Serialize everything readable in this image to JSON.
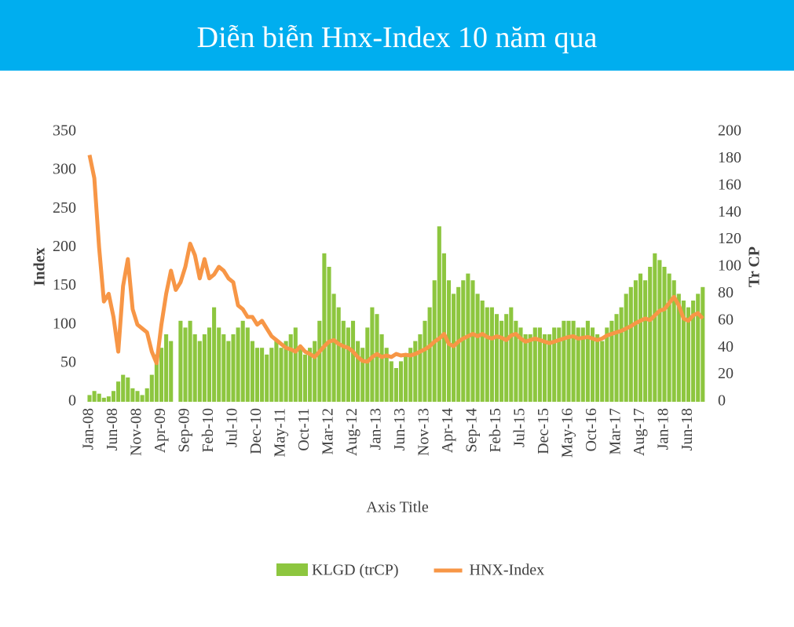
{
  "chart_data": {
    "type": "bar-line",
    "title": "Diễn biễn Hnx-Index 10 năm qua",
    "x_label": "Axis Title",
    "y_label": "Index",
    "y2_label": "Tr CP",
    "categories": [
      "Jan-08",
      null,
      null,
      null,
      null,
      "Jun-08",
      null,
      null,
      null,
      null,
      "Nov-08",
      null,
      null,
      null,
      null,
      "Apr-09",
      null,
      null,
      null,
      null,
      "Sep-09",
      null,
      null,
      null,
      null,
      "Feb-10",
      null,
      null,
      null,
      null,
      "Jul-10",
      null,
      null,
      null,
      null,
      "Dec-10",
      null,
      null,
      null,
      null,
      "May-11",
      null,
      null,
      null,
      null,
      "Oct-11",
      null,
      null,
      null,
      null,
      "Mar-12",
      null,
      null,
      null,
      null,
      "Aug-12",
      null,
      null,
      null,
      null,
      "Jan-13",
      null,
      null,
      null,
      null,
      "Jun-13",
      null,
      null,
      null,
      null,
      "Nov-13",
      null,
      null,
      null,
      null,
      "Apr-14",
      null,
      null,
      null,
      null,
      "Sep-14",
      null,
      null,
      null,
      null,
      "Feb-15",
      null,
      null,
      null,
      null,
      "Jul-15",
      null,
      null,
      null,
      null,
      "Dec-15",
      null,
      null,
      null,
      null,
      "May-16",
      null,
      null,
      null,
      null,
      "Oct-16",
      null,
      null,
      null,
      null,
      "Mar-17",
      null,
      null,
      null,
      null,
      "Aug-17",
      null,
      null,
      null,
      null,
      "Jan-18",
      null,
      null,
      null,
      null,
      "Jun-18",
      null,
      null,
      null
    ],
    "series": [
      {
        "name": "KLGD (trCP)",
        "type": "bar",
        "axis": "y2",
        "color": "#8dc63f",
        "values": [
          5,
          8,
          6,
          3,
          4,
          8,
          15,
          20,
          18,
          10,
          8,
          5,
          10,
          20,
          35,
          40,
          50,
          45,
          0,
          60,
          55,
          60,
          50,
          45,
          50,
          55,
          70,
          55,
          50,
          45,
          50,
          55,
          60,
          55,
          45,
          40,
          40,
          35,
          40,
          45,
          40,
          45,
          50,
          55,
          40,
          35,
          40,
          45,
          60,
          110,
          100,
          80,
          70,
          60,
          55,
          60,
          45,
          40,
          55,
          70,
          65,
          50,
          40,
          30,
          25,
          30,
          35,
          40,
          45,
          50,
          60,
          70,
          90,
          130,
          110,
          90,
          80,
          85,
          90,
          95,
          90,
          80,
          75,
          70,
          70,
          65,
          60,
          65,
          70,
          60,
          55,
          50,
          50,
          55,
          55,
          50,
          50,
          55,
          55,
          60,
          60,
          60,
          55,
          55,
          60,
          55,
          50,
          45,
          55,
          60,
          65,
          70,
          80,
          85,
          90,
          95,
          90,
          100,
          110,
          105,
          100,
          95,
          90,
          80,
          75,
          70,
          75,
          80,
          85
        ]
      },
      {
        "name": "HNX-Index",
        "type": "line",
        "color": "#f79646",
        "values": [
          320,
          290,
          200,
          130,
          140,
          110,
          65,
          150,
          185,
          120,
          100,
          95,
          90,
          65,
          50,
          100,
          140,
          170,
          145,
          155,
          175,
          205,
          190,
          160,
          185,
          160,
          165,
          175,
          170,
          160,
          155,
          125,
          120,
          110,
          110,
          100,
          105,
          95,
          85,
          80,
          75,
          70,
          68,
          65,
          72,
          65,
          62,
          58,
          65,
          72,
          78,
          80,
          75,
          72,
          70,
          65,
          58,
          53,
          52,
          58,
          62,
          58,
          60,
          58,
          62,
          60,
          61,
          60,
          62,
          65,
          68,
          72,
          78,
          82,
          88,
          75,
          72,
          78,
          82,
          85,
          88,
          85,
          88,
          84,
          82,
          85,
          83,
          80,
          86,
          88,
          82,
          78,
          80,
          82,
          80,
          78,
          76,
          78,
          80,
          82,
          84,
          85,
          82,
          83,
          84,
          82,
          80,
          82,
          86,
          88,
          90,
          92,
          95,
          98,
          102,
          105,
          108,
          106,
          112,
          118,
          120,
          128,
          136,
          125,
          108,
          105,
          112,
          115,
          108
        ]
      }
    ],
    "ylim": [
      0,
      350
    ],
    "yticks": [
      0,
      50,
      100,
      150,
      200,
      250,
      300,
      350
    ],
    "y2lim": [
      0,
      200
    ],
    "y2ticks": [
      0,
      20,
      40,
      60,
      80,
      100,
      120,
      140,
      160,
      180,
      200
    ],
    "legend": "bottom"
  }
}
